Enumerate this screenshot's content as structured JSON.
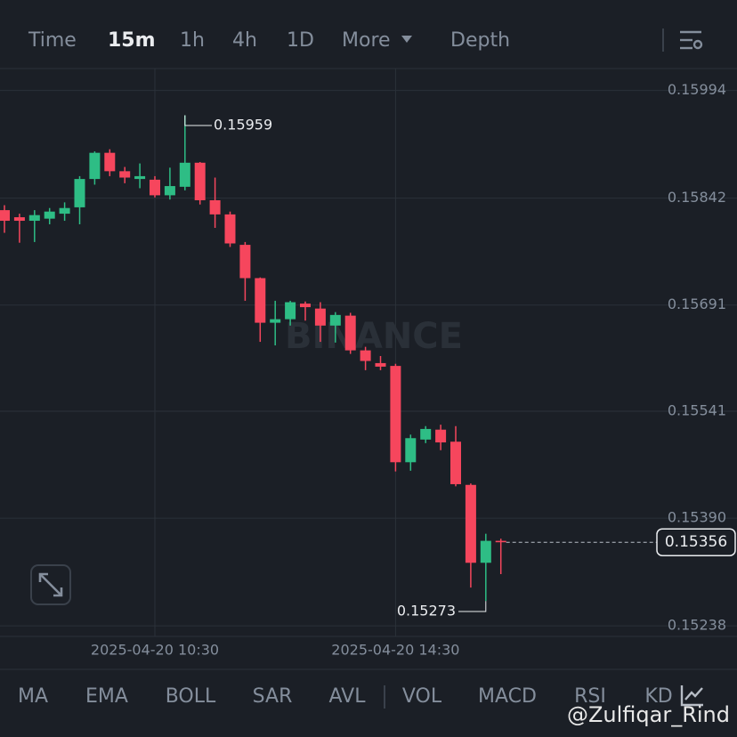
{
  "tabs": [
    "Time",
    "15m",
    "1h",
    "4h",
    "1D",
    "More",
    "Depth"
  ],
  "active_tab": "15m",
  "indicators": [
    "MA",
    "EMA",
    "BOLL",
    "SAR",
    "AVL",
    "VOL",
    "MACD",
    "RSI",
    "KD"
  ],
  "watermark": "BINANCE",
  "credit": "@Zulfiqar_Rind",
  "chart_data": {
    "type": "candlestick",
    "categories": [
      null,
      null,
      null,
      null,
      null,
      null,
      null,
      null,
      null,
      null,
      "2025-04-20 10:30",
      null,
      null,
      null,
      null,
      null,
      null,
      null,
      null,
      null,
      null,
      null,
      null,
      null,
      null,
      null,
      "2025-04-20 14:30",
      null,
      null,
      null,
      null,
      null,
      null,
      null
    ],
    "open": [
      0.15825,
      0.15815,
      0.1581,
      0.15813,
      0.1582,
      0.15829,
      0.15869,
      0.15906,
      0.1588,
      0.15869,
      0.15868,
      0.15846,
      0.15858,
      0.15892,
      0.15839,
      0.15819,
      0.15776,
      0.15729,
      0.15666,
      0.15671,
      0.15693,
      0.15686,
      0.15662,
      0.15676,
      0.15627,
      0.15609,
      0.15605,
      0.15469,
      0.15501,
      0.15515,
      0.15498,
      0.15437,
      0.15327,
      0.15358
    ],
    "high": [
      0.15832,
      0.1582,
      0.15825,
      0.15828,
      0.15836,
      0.15873,
      0.15908,
      0.15911,
      0.15886,
      0.15891,
      0.15873,
      0.15885,
      0.15959,
      0.15893,
      0.15871,
      0.15823,
      0.1578,
      0.1573,
      0.15697,
      0.15697,
      0.15696,
      0.15695,
      0.15681,
      0.1568,
      0.15632,
      0.15619,
      0.15608,
      0.15508,
      0.1552,
      0.15522,
      0.1552,
      0.15439,
      0.15368,
      0.15361
    ],
    "low": [
      0.15793,
      0.15779,
      0.1578,
      0.15805,
      0.1581,
      0.15805,
      0.15861,
      0.15873,
      0.15863,
      0.15856,
      0.15843,
      0.1584,
      0.15853,
      0.15833,
      0.158,
      0.15773,
      0.15697,
      0.15639,
      0.15634,
      0.15662,
      0.15669,
      0.15639,
      0.15638,
      0.15622,
      0.15599,
      0.15599,
      0.15456,
      0.15457,
      0.15496,
      0.15486,
      0.15435,
      0.15292,
      0.15273,
      0.15311
    ],
    "close": [
      0.1581,
      0.1581,
      0.15818,
      0.15823,
      0.15828,
      0.15869,
      0.15906,
      0.1588,
      0.15871,
      0.15873,
      0.15846,
      0.15859,
      0.15892,
      0.15839,
      0.15819,
      0.15778,
      0.15729,
      0.15666,
      0.15671,
      0.15695,
      0.15688,
      0.15662,
      0.15677,
      0.15627,
      0.15612,
      0.15604,
      0.15469,
      0.15503,
      0.15516,
      0.15497,
      0.15438,
      0.15327,
      0.15358,
      0.15356
    ],
    "up_color": "#2ebd85",
    "down_color": "#f6465d",
    "ylim": [
      0.15223,
      0.16025
    ],
    "yticks": [
      0.15994,
      0.15842,
      0.15691,
      0.15541,
      {
        "value": 0.1539,
        "label": "0.15390"
      },
      0.15238
    ],
    "grid": true
  }
}
